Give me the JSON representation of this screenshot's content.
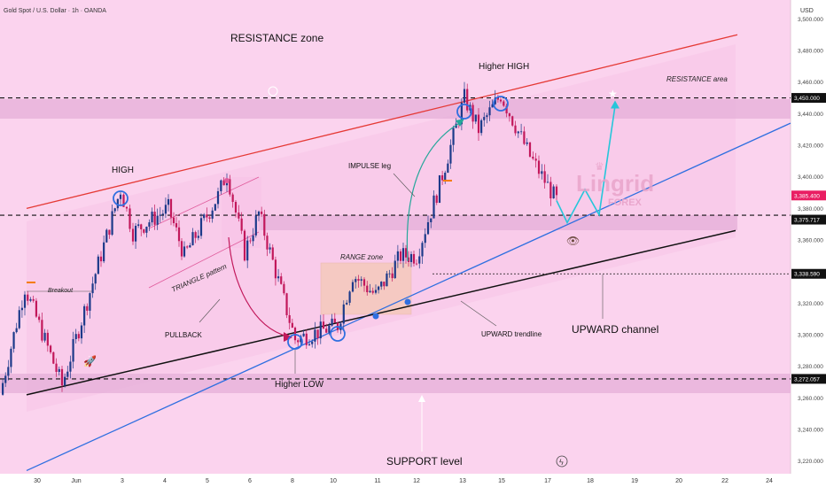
{
  "header": {
    "symbol_title": "Gold Spot / U.S. Dollar · 1h · OANDA",
    "currency": "USD"
  },
  "colors": {
    "background": "#fbd3ee",
    "band": "#e8b3db",
    "up_candle": "#1d3a8a",
    "down_candle": "#c2185b",
    "resistance_line": "#e53935",
    "uptrend_line": "#2f6fe0",
    "support_line": "#111111",
    "impulse_arrow": "#26a69a",
    "pullback_arrow": "#c2185b",
    "projection": "#26c6da",
    "price_tag": "#e91e63",
    "level_tag": "#111111"
  },
  "chart_data": {
    "type": "candlestick",
    "timeframe": "1h",
    "ylim": [
      3212,
      3512
    ],
    "y_ticks": [
      "3,500.000",
      "3,480.000",
      "3,460.000",
      "3,440.000",
      "3,420.000",
      "3,400.000",
      "3,380.000",
      "3,360.000",
      "3,340.000",
      "3,320.000",
      "3,300.000",
      "3,280.000",
      "3,260.000",
      "3,240.000",
      "3,220.000"
    ],
    "x_ticks": [
      "30",
      "Jun",
      "3",
      "4",
      "5",
      "6",
      "8",
      "10",
      "11",
      "12",
      "13",
      "15",
      "17",
      "18",
      "19",
      "20",
      "22",
      "24"
    ],
    "path_waypoints": [
      {
        "x": "30 May",
        "y": 3262
      },
      {
        "x": "31 May",
        "y": 3330
      },
      {
        "x": "2 Jun",
        "y": 3268
      },
      {
        "x": "3 Jun",
        "y": 3392
      },
      {
        "x": "3 Jun",
        "y": 3365
      },
      {
        "x": "4 Jun",
        "y": 3380
      },
      {
        "x": "4 Jun",
        "y": 3350
      },
      {
        "x": "5 Jun",
        "y": 3388
      },
      {
        "x": "5 Jun",
        "y": 3403
      },
      {
        "x": "6 Jun",
        "y": 3352
      },
      {
        "x": "6 Jun",
        "y": 3377
      },
      {
        "x": "8 Jun",
        "y": 3297
      },
      {
        "x": "10 Jun",
        "y": 3306
      },
      {
        "x": "10 Jun",
        "y": 3338
      },
      {
        "x": "11 Jun",
        "y": 3325
      },
      {
        "x": "12 Jun",
        "y": 3350
      },
      {
        "x": "12 Jun",
        "y": 3350
      },
      {
        "x": "13 Jun",
        "y": 3395
      },
      {
        "x": "13 Jun",
        "y": 3450
      },
      {
        "x": "14 Jun",
        "y": 3430
      },
      {
        "x": "15 Jun",
        "y": 3452
      },
      {
        "x": "16 Jun",
        "y": 3413
      },
      {
        "x": "17 Jun",
        "y": 3385
      }
    ],
    "projection_path": [
      {
        "x": "17 Jun",
        "y": 3385
      },
      {
        "x": "17 Jun",
        "y": 3371
      },
      {
        "x": "18 Jun",
        "y": 3392
      },
      {
        "x": "18 Jun",
        "y": 3376
      },
      {
        "x": "18 Jun",
        "y": 3445
      }
    ],
    "horizontal_levels": [
      3450.0,
      3375.717,
      3338.59,
      3272.057
    ],
    "price_labels": [
      {
        "text": "3,450.000",
        "kind": "level"
      },
      {
        "text": "3,385.400",
        "kind": "last"
      },
      {
        "text": "3,375.717",
        "kind": "level"
      },
      {
        "text": "3,338.590",
        "kind": "level"
      },
      {
        "text": "3,272.057",
        "kind": "level"
      }
    ],
    "annotations": {
      "resistance_zone": "RESISTANCE zone",
      "resistance_area": "RESISTANCE area",
      "higher_high": "Higher HIGH",
      "high": "HIGH",
      "impulse_leg": "IMPULSE leg",
      "breakout": "Breakout",
      "triangle_pattern": "TRIANGLE pattern",
      "range_zone": "RANGE zone",
      "pullback": "PULLBACK",
      "higher_low": "Higher LOW",
      "upward_trendline": "UPWARD trendline",
      "upward_channel": "UPWARD channel",
      "support_level": "SUPPORT level",
      "watermark_main": "Lingrid",
      "watermark_sub": "FOREX"
    }
  }
}
